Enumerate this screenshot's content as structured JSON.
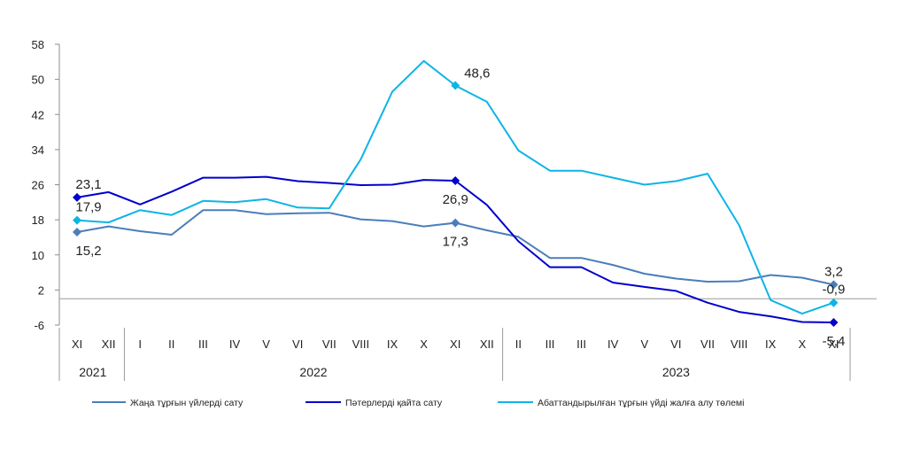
{
  "chart_data": {
    "type": "line",
    "title": "",
    "xlabel": "",
    "ylabel": "",
    "ylim": [
      -6,
      58
    ],
    "yticks": [
      -6,
      2,
      10,
      18,
      26,
      34,
      42,
      50,
      58
    ],
    "ytick_labels": [
      "-6",
      "2",
      "10",
      "18",
      "26",
      "34",
      "42",
      "50",
      "58"
    ],
    "reference_line": 0,
    "categories": [
      "XI",
      "XII",
      "I",
      "II",
      "III",
      "IV",
      "V",
      "VI",
      "VII",
      "VIII",
      "IX",
      "X",
      "XI",
      "XII",
      "II",
      "III",
      "III",
      "IV",
      "V",
      "VI",
      "VII",
      "VIII",
      "IX",
      "X",
      "XI"
    ],
    "year_groups": [
      {
        "label": "2021",
        "start": 0,
        "end": 1
      },
      {
        "label": "2022",
        "start": 2,
        "end": 13
      },
      {
        "label": "2023",
        "start": 14,
        "end": 24
      }
    ],
    "legend_position": "bottom",
    "series": [
      {
        "name": "Жаңа тұрғын үйлерді сату",
        "color": "#4A7EBB",
        "values": [
          15.2,
          16.5,
          15.4,
          14.6,
          20.2,
          20.2,
          19.3,
          19.5,
          19.6,
          18.1,
          17.7,
          16.5,
          17.3,
          15.6,
          14.1,
          9.3,
          9.3,
          7.7,
          5.7,
          4.6,
          3.9,
          4.0,
          5.4,
          4.8,
          3.2
        ],
        "markers": [
          {
            "index": 0,
            "label": "15,2",
            "label_pos": "below"
          },
          {
            "index": 12,
            "label": "17,3",
            "label_pos": "below"
          },
          {
            "index": 24,
            "label": "3,2",
            "label_pos": "above"
          }
        ]
      },
      {
        "name": "Пәтерлерді қайта сату",
        "color": "#0000CC",
        "values": [
          23.1,
          24.3,
          21.5,
          24.4,
          27.6,
          27.6,
          27.8,
          26.8,
          26.4,
          25.9,
          26.0,
          27.1,
          26.9,
          21.4,
          13.1,
          7.2,
          7.2,
          3.7,
          2.7,
          1.8,
          -0.9,
          -3.0,
          -4.0,
          -5.3,
          -5.4
        ],
        "markers": [
          {
            "index": 0,
            "label": "23,1",
            "label_pos": "above"
          },
          {
            "index": 12,
            "label": "26,9",
            "label_pos": "below"
          },
          {
            "index": 24,
            "label": "-5,4",
            "label_pos": "below"
          }
        ]
      },
      {
        "name": "Абаттандырылған тұрғын үйді жалға алу төлемі",
        "color": "#0EB4E6",
        "values": [
          17.9,
          17.4,
          20.2,
          19.1,
          22.3,
          22.0,
          22.7,
          20.8,
          20.6,
          31.8,
          47.2,
          54.2,
          48.6,
          44.9,
          33.8,
          29.2,
          29.2,
          27.6,
          26.0,
          26.8,
          28.5,
          16.8,
          -0.3,
          -3.4,
          -0.9
        ],
        "markers": [
          {
            "index": 0,
            "label": "17,9",
            "label_pos": "above"
          },
          {
            "index": 12,
            "label": "48,6",
            "label_pos": "above-right"
          },
          {
            "index": 24,
            "label": "-0,9",
            "label_pos": "above"
          }
        ]
      }
    ]
  }
}
